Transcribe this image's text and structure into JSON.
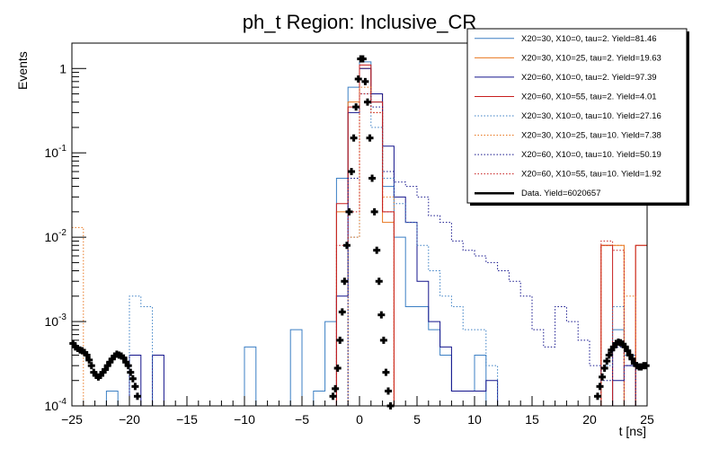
{
  "chart_data": {
    "type": "histogram-step",
    "title": "ph_t Region: Inclusive_CR",
    "xlabel": "t [ns]",
    "ylabel": "Events",
    "xlim": [
      -25,
      25
    ],
    "ylim": [
      0.0001,
      2
    ],
    "yscale": "log",
    "bin_width": 1,
    "x_ticks": [
      -25,
      -20,
      -15,
      -10,
      -5,
      0,
      5,
      10,
      15,
      20,
      25
    ],
    "y_ticks": [
      {
        "value": 1,
        "label": "1"
      },
      {
        "value": 0.1,
        "label": "10^-1"
      },
      {
        "value": 0.01,
        "label": "10^-2"
      },
      {
        "value": 0.001,
        "label": "10^-3"
      },
      {
        "value": 0.0001,
        "label": "10^-4"
      }
    ],
    "series": [
      {
        "name": "X20=30, X10=0, tau=2. Yield=81.46",
        "color": "#3b7fc4",
        "dash": "solid",
        "bins": [
          [
            -24,
            0.0001
          ],
          [
            -22,
            0.00015
          ],
          [
            -10,
            0.0005
          ],
          [
            -6,
            0.0008
          ],
          [
            -4,
            0.00015
          ],
          [
            -3,
            0.001
          ],
          [
            -2,
            0.05
          ],
          [
            -1,
            0.6
          ],
          [
            0,
            1.2
          ],
          [
            1,
            0.4
          ],
          [
            2,
            0.04
          ],
          [
            3,
            0.01
          ],
          [
            4,
            0.0015
          ],
          [
            5,
            0.0015
          ],
          [
            6,
            0.0008
          ],
          [
            7,
            0.0004
          ],
          [
            8,
            0.00015
          ],
          [
            9,
            0.00015
          ],
          [
            10,
            0.0004
          ],
          [
            20,
            0.0001
          ],
          [
            21,
            0.0001
          ],
          [
            22,
            0.0008
          ],
          [
            23,
            0.0004
          ]
        ]
      },
      {
        "name": "X20=30, X10=25, tau=2. Yield=19.63",
        "color": "#e8761e",
        "dash": "solid",
        "bins": [
          [
            -2,
            0.02
          ],
          [
            -1,
            0.4
          ],
          [
            0,
            1.0
          ],
          [
            1,
            0.5
          ],
          [
            2,
            0.015
          ],
          [
            21,
            0.008
          ],
          [
            22,
            0.008
          ],
          [
            24,
            0.008
          ]
        ]
      },
      {
        "name": "X20=60, X10=0, tau=2. Yield=97.39",
        "color": "#14148c",
        "dash": "solid",
        "bins": [
          [
            -24,
            0.0001
          ],
          [
            -21,
            0.0001
          ],
          [
            -20,
            0.0004
          ],
          [
            -19,
            0.0001
          ],
          [
            -18,
            0.0004
          ],
          [
            -3,
            0.0001
          ],
          [
            -2,
            0.002
          ],
          [
            -1,
            0.3
          ],
          [
            0,
            1.0
          ],
          [
            1,
            0.5
          ],
          [
            2,
            0.12
          ],
          [
            3,
            0.03
          ],
          [
            4,
            0.015
          ],
          [
            5,
            0.003
          ],
          [
            6,
            0.001
          ],
          [
            7,
            0.0005
          ],
          [
            8,
            0.00015
          ],
          [
            9,
            0.00015
          ],
          [
            10,
            0.00015
          ],
          [
            11,
            0.0002
          ],
          [
            20,
            0.0001
          ],
          [
            21,
            0.0001
          ],
          [
            22,
            0.0002
          ],
          [
            23,
            0.0003
          ],
          [
            24,
            0.0001
          ]
        ]
      },
      {
        "name": "X20=60, X10=55, tau=2. Yield=4.01",
        "color": "#c81e1e",
        "dash": "solid",
        "bins": [
          [
            -2,
            0.025
          ],
          [
            -1,
            0.35
          ],
          [
            0,
            1.1
          ],
          [
            1,
            0.4
          ],
          [
            2,
            0.02
          ],
          [
            21,
            0.008
          ],
          [
            24,
            0.008
          ]
        ]
      },
      {
        "name": "X20=30, X10=0, tau=10. Yield=27.16",
        "color": "#3b7fc4",
        "dash": "dotted",
        "bins": [
          [
            -23,
            0.0001
          ],
          [
            -20,
            0.002
          ],
          [
            -19,
            0.0015
          ],
          [
            -1,
            0.01
          ],
          [
            0,
            0.5
          ],
          [
            1,
            0.2
          ],
          [
            2,
            0.05
          ],
          [
            3,
            0.025
          ],
          [
            4,
            0.015
          ],
          [
            5,
            0.008
          ],
          [
            6,
            0.004
          ],
          [
            7,
            0.002
          ],
          [
            8,
            0.0015
          ],
          [
            9,
            0.0008
          ],
          [
            10,
            0.0008
          ],
          [
            11,
            0.0003
          ],
          [
            21,
            0.0003
          ],
          [
            22,
            0.0015
          ]
        ]
      },
      {
        "name": "X20=30, X10=25, tau=10. Yield=7.38",
        "color": "#e8761e",
        "dash": "dotted",
        "bins": [
          [
            -25,
            0.013
          ],
          [
            -1,
            0.01
          ],
          [
            0,
            0.6
          ],
          [
            1,
            0.3
          ],
          [
            2,
            0.03
          ],
          [
            21,
            0.008
          ],
          [
            22,
            0.008
          ],
          [
            23,
            0.002
          ]
        ]
      },
      {
        "name": "X20=60, X10=0, tau=10. Yield=50.19",
        "color": "#14148c",
        "dash": "dotted",
        "bins": [
          [
            -1,
            0.05
          ],
          [
            0,
            0.5
          ],
          [
            1,
            0.35
          ],
          [
            2,
            0.06
          ],
          [
            3,
            0.045
          ],
          [
            4,
            0.04
          ],
          [
            5,
            0.03
          ],
          [
            6,
            0.018
          ],
          [
            7,
            0.015
          ],
          [
            8,
            0.009
          ],
          [
            9,
            0.007
          ],
          [
            10,
            0.006
          ],
          [
            11,
            0.005
          ],
          [
            12,
            0.004
          ],
          [
            13,
            0.003
          ],
          [
            14,
            0.002
          ],
          [
            15,
            0.0008
          ],
          [
            16,
            0.0005
          ],
          [
            17,
            0.0015
          ],
          [
            18,
            0.001
          ],
          [
            19,
            0.0006
          ],
          [
            20,
            0.0003
          ],
          [
            21,
            0.0002
          ],
          [
            22,
            0.0005
          ],
          [
            23,
            0.0003
          ],
          [
            24,
            0.0001
          ]
        ]
      },
      {
        "name": "X20=60, X10=55, tau=10. Yield=1.92",
        "color": "#c81e1e",
        "dash": "dotted",
        "bins": [
          [
            -2,
            0.008
          ],
          [
            -1,
            0.02
          ],
          [
            0,
            0.5
          ],
          [
            1,
            0.3
          ],
          [
            2,
            0.02
          ],
          [
            21,
            0.009
          ],
          [
            22,
            0.007
          ]
        ]
      },
      {
        "name": "Data. Yield=6020657",
        "color": "#000000",
        "dash": "marker",
        "points": [
          [
            -24.9,
            0.00055
          ],
          [
            -24.7,
            0.0005
          ],
          [
            -24.5,
            0.00048
          ],
          [
            -24.3,
            0.00046
          ],
          [
            -24.1,
            0.00045
          ],
          [
            -23.9,
            0.00043
          ],
          [
            -23.7,
            0.0004
          ],
          [
            -23.5,
            0.00035
          ],
          [
            -23.3,
            0.0003
          ],
          [
            -23.1,
            0.00025
          ],
          [
            -22.9,
            0.00023
          ],
          [
            -22.7,
            0.00022
          ],
          [
            -22.5,
            0.00023
          ],
          [
            -22.3,
            0.00025
          ],
          [
            -22.1,
            0.00027
          ],
          [
            -21.9,
            0.0003
          ],
          [
            -21.7,
            0.00033
          ],
          [
            -21.5,
            0.00036
          ],
          [
            -21.3,
            0.00039
          ],
          [
            -21.1,
            0.00041
          ],
          [
            -20.9,
            0.0004
          ],
          [
            -20.7,
            0.00039
          ],
          [
            -20.5,
            0.00037
          ],
          [
            -20.3,
            0.00033
          ],
          [
            -20.1,
            0.0003
          ],
          [
            -19.9,
            0.00025
          ],
          [
            -19.7,
            0.00021
          ],
          [
            -19.5,
            0.00017
          ],
          [
            -19.3,
            0.00013
          ],
          [
            -2.3,
            0.00013
          ],
          [
            -2.1,
            0.00016
          ],
          [
            -1.9,
            0.00028
          ],
          [
            -1.7,
            0.0006
          ],
          [
            -1.5,
            0.0013
          ],
          [
            -1.3,
            0.003
          ],
          [
            -1.1,
            0.008
          ],
          [
            -0.9,
            0.02
          ],
          [
            -0.7,
            0.06
          ],
          [
            -0.5,
            0.15
          ],
          [
            -0.3,
            0.35
          ],
          [
            -0.1,
            0.75
          ],
          [
            0.1,
            1.3
          ],
          [
            0.3,
            1.3
          ],
          [
            0.5,
            0.7
          ],
          [
            0.7,
            0.4
          ],
          [
            0.9,
            0.15
          ],
          [
            1.1,
            0.05
          ],
          [
            1.3,
            0.02
          ],
          [
            1.5,
            0.007
          ],
          [
            1.7,
            0.003
          ],
          [
            1.9,
            0.0012
          ],
          [
            2.1,
            0.0006
          ],
          [
            2.3,
            0.00025
          ],
          [
            2.5,
            0.00015
          ],
          [
            2.7,
            0.0001
          ],
          [
            20.7,
            0.00013
          ],
          [
            20.9,
            0.00017
          ],
          [
            21.1,
            0.00022
          ],
          [
            21.3,
            0.00028
          ],
          [
            21.5,
            0.00034
          ],
          [
            21.7,
            0.0004
          ],
          [
            21.9,
            0.00046
          ],
          [
            22.1,
            0.0005
          ],
          [
            22.3,
            0.00055
          ],
          [
            22.5,
            0.00057
          ],
          [
            22.7,
            0.00056
          ],
          [
            22.9,
            0.00054
          ],
          [
            23.1,
            0.0005
          ],
          [
            23.3,
            0.00045
          ],
          [
            23.5,
            0.0004
          ],
          [
            23.7,
            0.00036
          ],
          [
            23.9,
            0.00032
          ],
          [
            24.1,
            0.0003
          ],
          [
            24.3,
            0.00029
          ],
          [
            24.5,
            0.00029
          ],
          [
            24.7,
            0.0003
          ],
          [
            24.9,
            0.0003
          ]
        ]
      }
    ]
  }
}
